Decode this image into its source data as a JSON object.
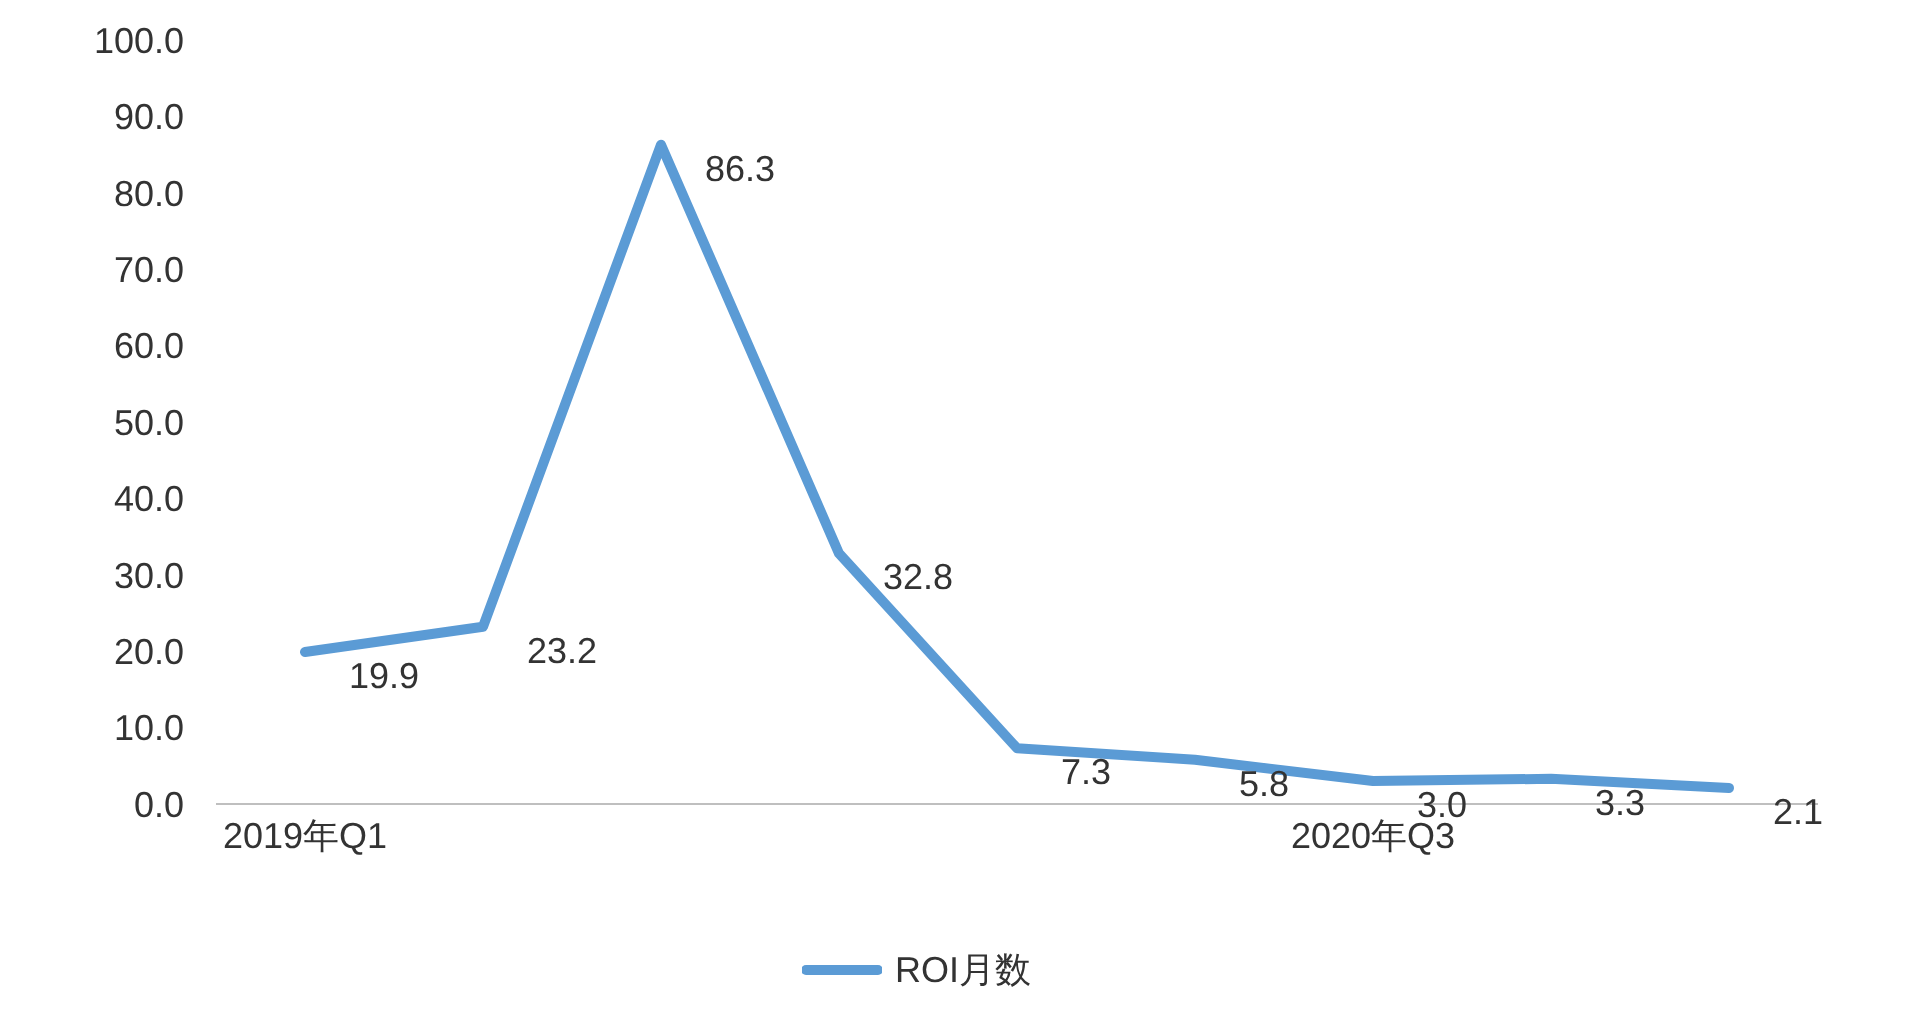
{
  "chart_data": {
    "type": "line",
    "categories": [
      "2019年Q1",
      null,
      null,
      null,
      null,
      null,
      "2020年Q3",
      null,
      null
    ],
    "series": [
      {
        "name": "ROI月数",
        "color": "#5b9bd5",
        "values": [
          19.9,
          23.2,
          86.3,
          32.8,
          7.3,
          5.8,
          3.0,
          3.3,
          2.1
        ],
        "value_labels": [
          "19.9",
          "23.2",
          "86.3",
          "32.8",
          "7.3",
          "5.8",
          "3.0",
          "3.3",
          "2.1"
        ]
      }
    ],
    "ylim": [
      0,
      100
    ],
    "yticks": [
      {
        "value": 0,
        "label": "0.0"
      },
      {
        "value": 10,
        "label": "10.0"
      },
      {
        "value": 20,
        "label": "20.0"
      },
      {
        "value": 30,
        "label": "30.0"
      },
      {
        "value": 40,
        "label": "40.0"
      },
      {
        "value": 50,
        "label": "50.0"
      },
      {
        "value": 60,
        "label": "60.0"
      },
      {
        "value": 70,
        "label": "70.0"
      },
      {
        "value": 80,
        "label": "80.0"
      },
      {
        "value": 90,
        "label": "90.0"
      },
      {
        "value": 100,
        "label": "100.0"
      }
    ],
    "grid": false,
    "legend": "bottom",
    "marker": "none",
    "line_style": "solid"
  }
}
